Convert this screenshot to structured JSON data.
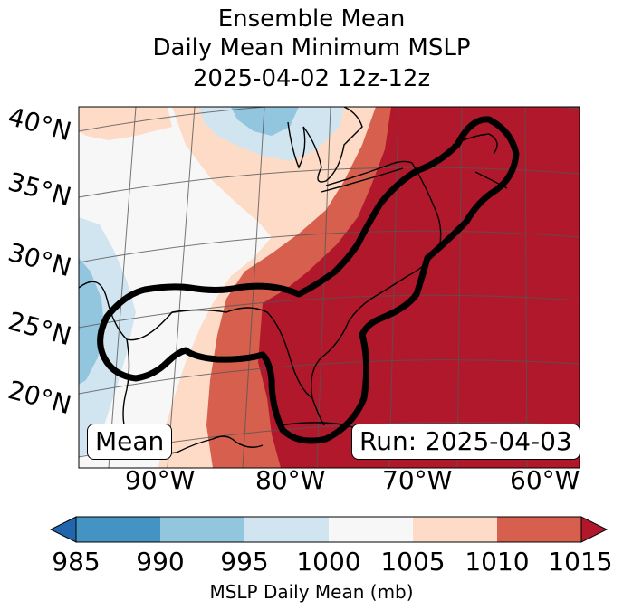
{
  "title": {
    "line1": "Ensemble Mean",
    "line2": "Daily Mean Minimum MSLP",
    "line3": "2025-04-02 12z-12z"
  },
  "map": {
    "lat_labels": [
      "40°N",
      "35°N",
      "30°N",
      "25°N",
      "20°N"
    ],
    "lon_labels": [
      "90°W",
      "80°W",
      "70°W",
      "60°W"
    ],
    "left_box_label": "Mean",
    "right_box_label": "Run: 2025-04-03"
  },
  "colorbar": {
    "label": "MSLP Daily Mean (mb)",
    "ticks": [
      "985",
      "990",
      "995",
      "1000",
      "1005",
      "1010",
      "1015"
    ],
    "colors": {
      "below": "#2166ac",
      "c985_990": "#4393c3",
      "c990_995": "#92c5de",
      "c995_1000": "#d1e5f0",
      "c1000_1005": "#f7f7f7",
      "c1005_1010": "#fddbc7",
      "c1010_1015": "#d6604d",
      "above": "#b2182b"
    }
  }
}
